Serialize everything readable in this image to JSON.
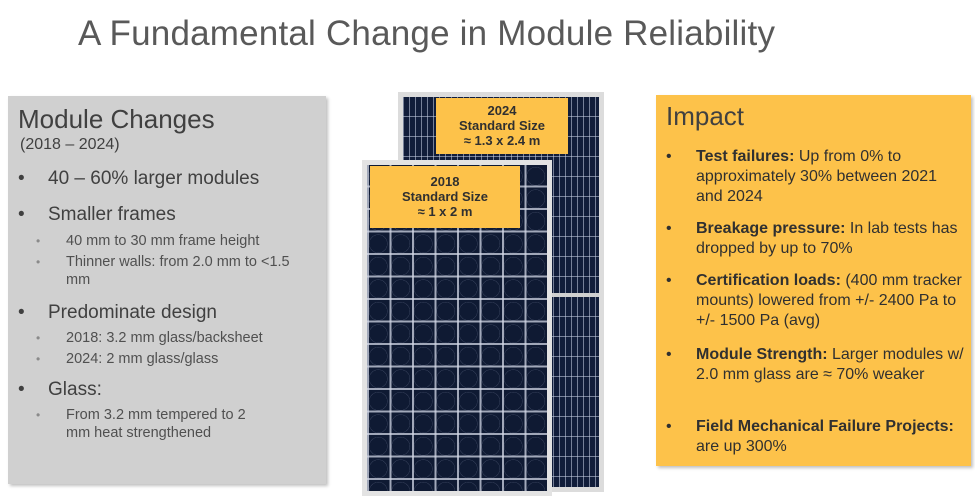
{
  "title": "A Fundamental Change in Module Reliability",
  "left": {
    "heading": "Module Changes",
    "subheading": "(2018 – 2024)",
    "bullet_symbol": "•",
    "sub_bullet_symbol": "•",
    "bullets": [
      {
        "text": "40 – 60% larger modules",
        "subs": []
      },
      {
        "text": "Smaller frames",
        "subs": [
          "40 mm to 30 mm frame height",
          "Thinner walls: from 2.0 mm to <1.5 mm"
        ]
      },
      {
        "text": "Predominate design",
        "subs": [
          "2018: 3.2 mm glass/backsheet",
          "2024: 2 mm glass/glass"
        ]
      },
      {
        "text": "Glass:",
        "subs": [
          "From 3.2 mm tempered to 2 mm heat strengthened"
        ]
      }
    ]
  },
  "center": {
    "label_2024": {
      "year": "2024",
      "line2": "Standard Size",
      "size": "≈ 1.3 x 2.4 m"
    },
    "label_2018": {
      "year": "2018",
      "line2": "Standard Size",
      "size": "≈ 1 x 2 m"
    }
  },
  "right": {
    "heading": "Impact",
    "bullet_symbol": "•",
    "items": [
      {
        "bold": "Test failures:",
        "text": " Up from 0% to approximately 30% between 2021 and 2024"
      },
      {
        "bold": "Breakage pressure:",
        "text": " In lab tests has dropped by up to 70%"
      },
      {
        "bold": "Certification loads:",
        "text": " (400 mm tracker mounts) lowered from +/- 2400 Pa to +/- 1500 Pa (avg)"
      },
      {
        "bold": "Module Strength:",
        "text": " Larger modules w/ 2.0 mm glass are ≈ 70% weaker"
      },
      {
        "bold": "Field Mechanical Failure Projects:",
        "text": " are up 300%"
      }
    ]
  },
  "colors": {
    "accent": "#fdc24a",
    "panel_gray": "#d0d0d0",
    "module_blue": "#111d3a"
  }
}
